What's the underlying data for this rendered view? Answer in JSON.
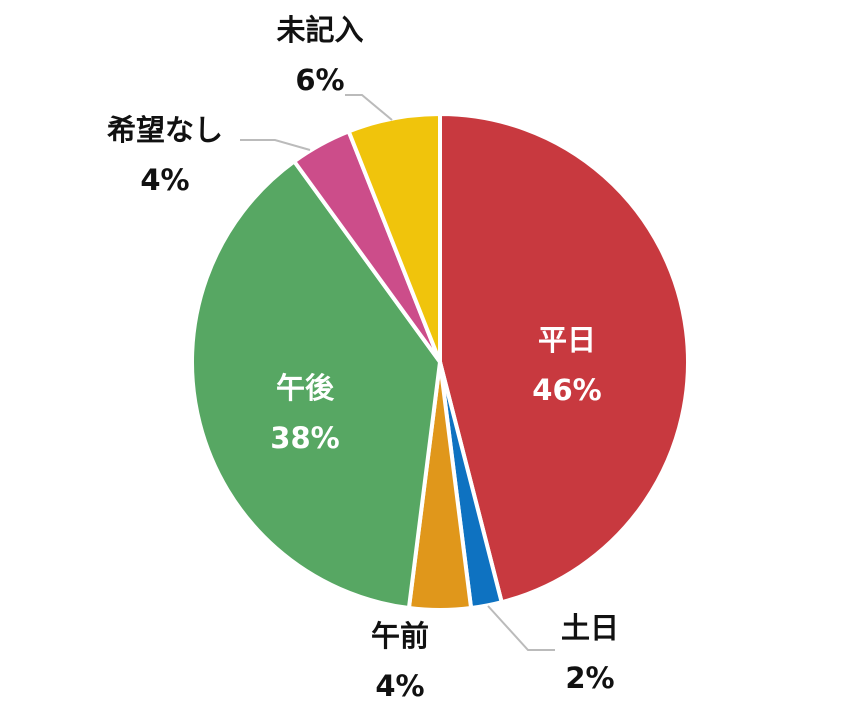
{
  "chart_data": {
    "type": "pie",
    "categories": [
      "平日",
      "土日",
      "午前",
      "午後",
      "希望なし",
      "未記入"
    ],
    "values": [
      46,
      2,
      4,
      38,
      4,
      6
    ],
    "value_labels": [
      "46%",
      "2%",
      "4%",
      "38%",
      "4%",
      "6%"
    ],
    "colors": [
      "#c8393f",
      "#0e72c1",
      "#e0971b",
      "#57a763",
      "#cc4d8a",
      "#f0c40c"
    ]
  }
}
